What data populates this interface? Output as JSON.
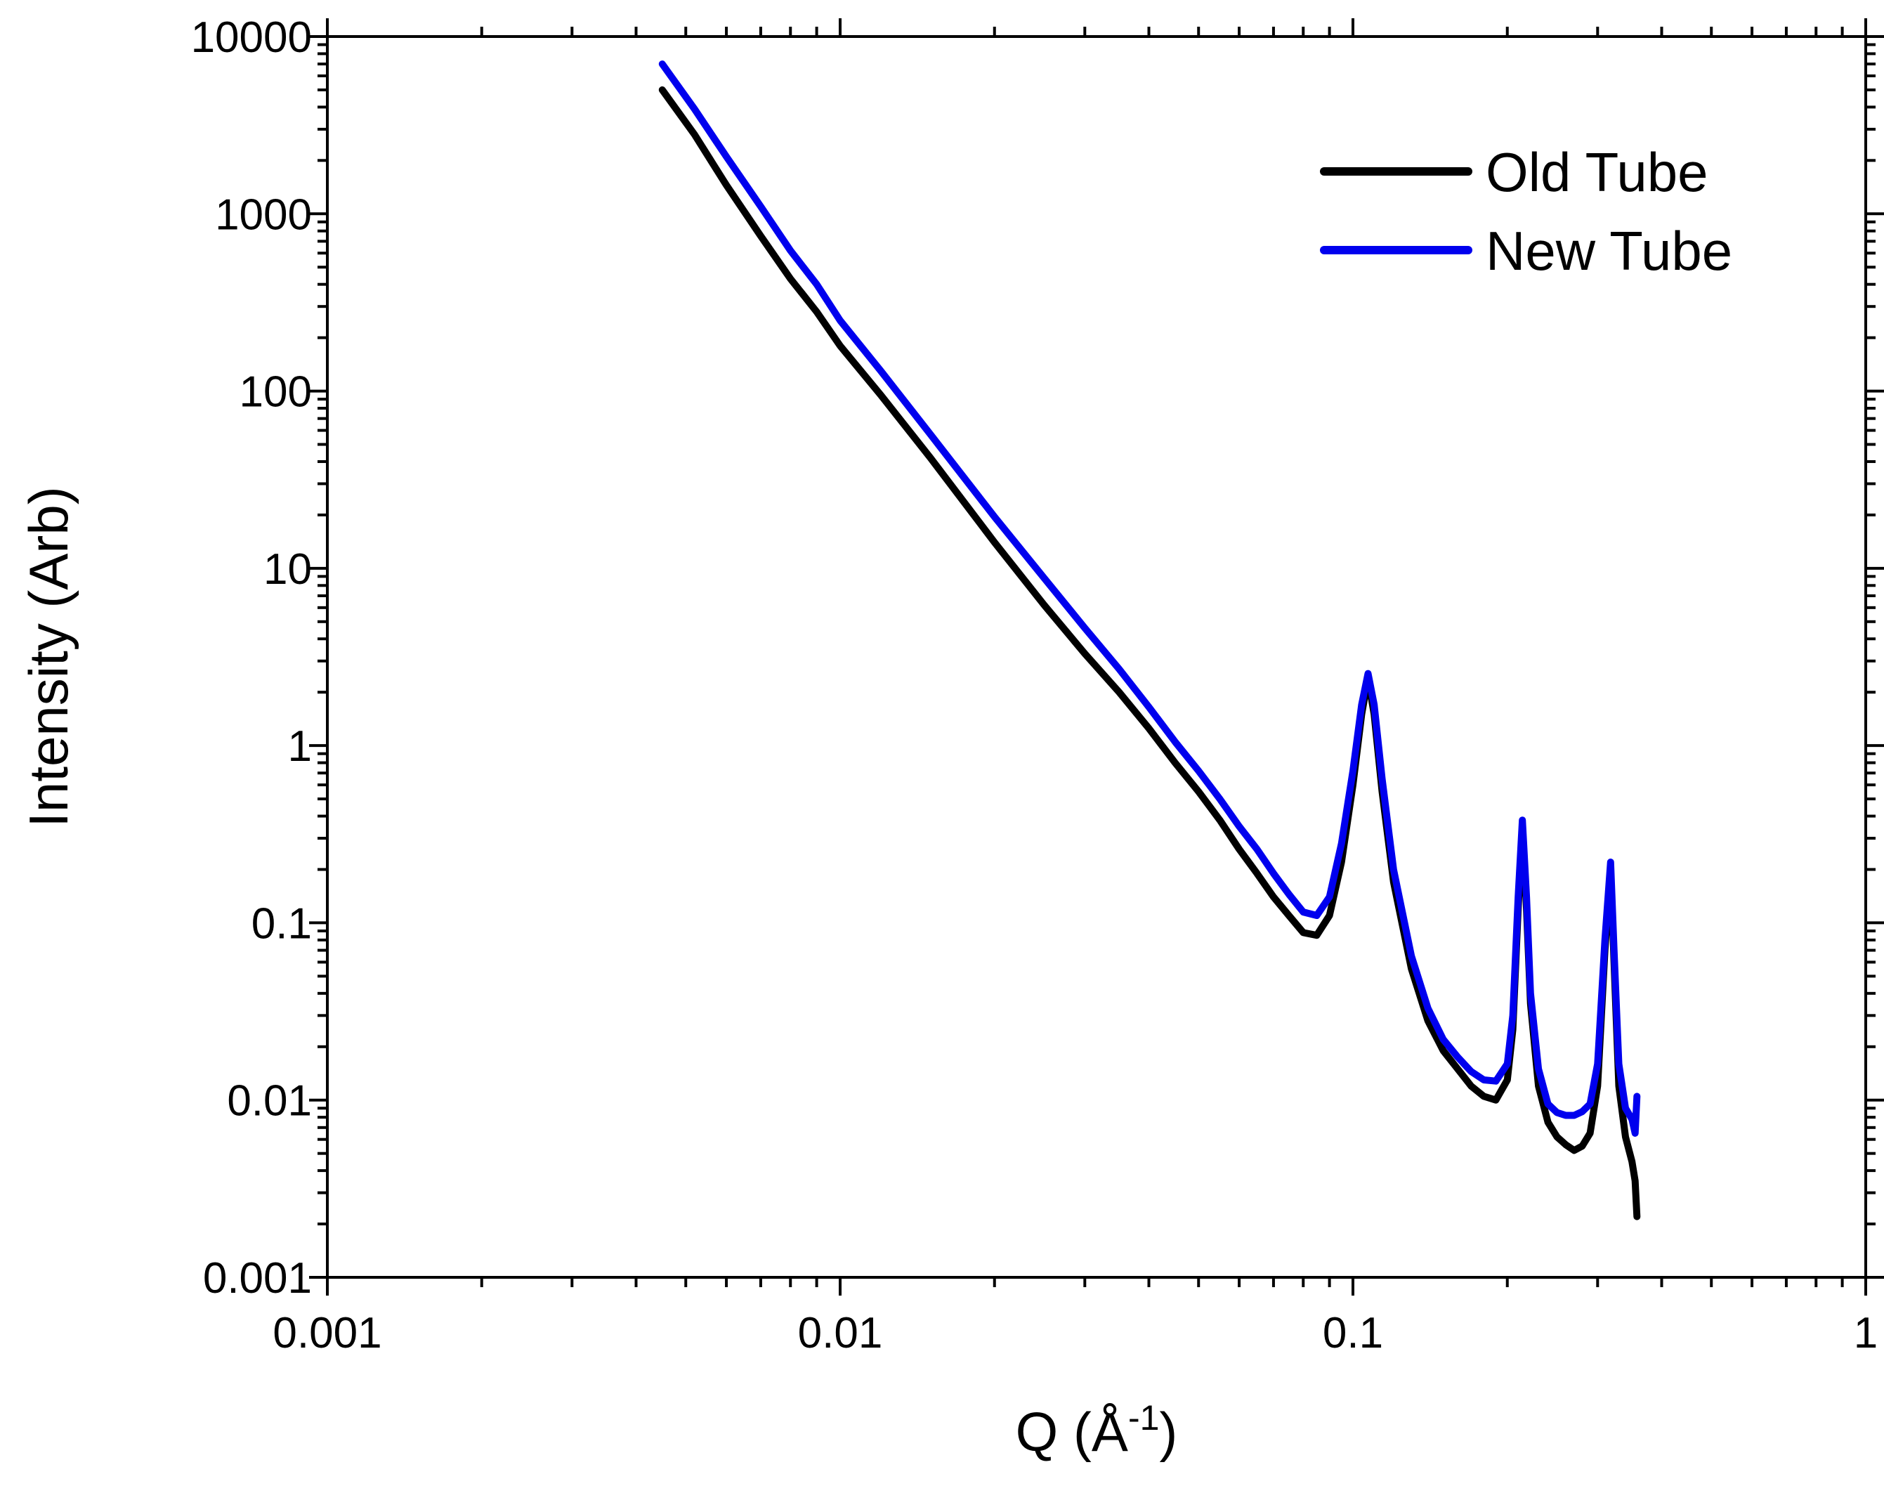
{
  "chart_data": {
    "type": "line",
    "xlabel": {
      "base": "Q (Å",
      "sup": "-1",
      "close": ")"
    },
    "ylabel": "Intensity (Arb)",
    "xscale": "log",
    "yscale": "log",
    "xlim": [
      0.001,
      1
    ],
    "ylim": [
      0.001,
      10000
    ],
    "grid": false,
    "legend_position": "top-right",
    "x_tick_labels": [
      "0.001",
      "0.01",
      "0.1",
      "1"
    ],
    "y_tick_labels": [
      "0.001",
      "0.01",
      "0.1",
      "1",
      "10",
      "100",
      "1000",
      "10000"
    ],
    "series": [
      {
        "name": "Old Tube",
        "color": "#000000",
        "points": [
          [
            0.0045,
            5000
          ],
          [
            0.0052,
            2800
          ],
          [
            0.006,
            1450
          ],
          [
            0.007,
            750
          ],
          [
            0.008,
            430
          ],
          [
            0.009,
            280
          ],
          [
            0.01,
            180
          ],
          [
            0.012,
            95
          ],
          [
            0.015,
            42
          ],
          [
            0.02,
            14
          ],
          [
            0.025,
            6.2
          ],
          [
            0.03,
            3.3
          ],
          [
            0.035,
            2.0
          ],
          [
            0.04,
            1.25
          ],
          [
            0.045,
            0.8
          ],
          [
            0.05,
            0.55
          ],
          [
            0.055,
            0.38
          ],
          [
            0.06,
            0.26
          ],
          [
            0.065,
            0.19
          ],
          [
            0.07,
            0.14
          ],
          [
            0.075,
            0.11
          ],
          [
            0.08,
            0.088
          ],
          [
            0.085,
            0.085
          ],
          [
            0.09,
            0.11
          ],
          [
            0.095,
            0.22
          ],
          [
            0.1,
            0.6
          ],
          [
            0.104,
            1.5
          ],
          [
            0.107,
            2.4
          ],
          [
            0.11,
            1.5
          ],
          [
            0.114,
            0.55
          ],
          [
            0.12,
            0.17
          ],
          [
            0.13,
            0.055
          ],
          [
            0.14,
            0.028
          ],
          [
            0.15,
            0.019
          ],
          [
            0.16,
            0.015
          ],
          [
            0.17,
            0.012
          ],
          [
            0.18,
            0.0105
          ],
          [
            0.19,
            0.01
          ],
          [
            0.2,
            0.013
          ],
          [
            0.205,
            0.025
          ],
          [
            0.21,
            0.12
          ],
          [
            0.214,
            0.35
          ],
          [
            0.218,
            0.12
          ],
          [
            0.222,
            0.035
          ],
          [
            0.23,
            0.012
          ],
          [
            0.24,
            0.0075
          ],
          [
            0.25,
            0.0062
          ],
          [
            0.26,
            0.0056
          ],
          [
            0.27,
            0.0052
          ],
          [
            0.28,
            0.0055
          ],
          [
            0.29,
            0.0065
          ],
          [
            0.3,
            0.012
          ],
          [
            0.31,
            0.07
          ],
          [
            0.318,
            0.2
          ],
          [
            0.323,
            0.06
          ],
          [
            0.33,
            0.012
          ],
          [
            0.34,
            0.0062
          ],
          [
            0.35,
            0.0045
          ],
          [
            0.355,
            0.0035
          ],
          [
            0.358,
            0.0022
          ]
        ]
      },
      {
        "name": "New Tube",
        "color": "#0000ee",
        "points": [
          [
            0.0045,
            7000
          ],
          [
            0.0052,
            3900
          ],
          [
            0.006,
            2100
          ],
          [
            0.007,
            1100
          ],
          [
            0.008,
            620
          ],
          [
            0.009,
            400
          ],
          [
            0.01,
            250
          ],
          [
            0.012,
            130
          ],
          [
            0.015,
            57
          ],
          [
            0.02,
            19.5
          ],
          [
            0.025,
            8.8
          ],
          [
            0.03,
            4.6
          ],
          [
            0.035,
            2.7
          ],
          [
            0.04,
            1.65
          ],
          [
            0.045,
            1.05
          ],
          [
            0.05,
            0.72
          ],
          [
            0.055,
            0.5
          ],
          [
            0.06,
            0.35
          ],
          [
            0.065,
            0.26
          ],
          [
            0.07,
            0.19
          ],
          [
            0.075,
            0.145
          ],
          [
            0.08,
            0.115
          ],
          [
            0.085,
            0.11
          ],
          [
            0.09,
            0.14
          ],
          [
            0.095,
            0.28
          ],
          [
            0.1,
            0.72
          ],
          [
            0.104,
            1.7
          ],
          [
            0.107,
            2.55
          ],
          [
            0.11,
            1.7
          ],
          [
            0.114,
            0.65
          ],
          [
            0.12,
            0.2
          ],
          [
            0.13,
            0.065
          ],
          [
            0.14,
            0.033
          ],
          [
            0.15,
            0.022
          ],
          [
            0.16,
            0.0175
          ],
          [
            0.17,
            0.0145
          ],
          [
            0.18,
            0.013
          ],
          [
            0.19,
            0.0128
          ],
          [
            0.2,
            0.016
          ],
          [
            0.205,
            0.03
          ],
          [
            0.21,
            0.14
          ],
          [
            0.214,
            0.38
          ],
          [
            0.218,
            0.14
          ],
          [
            0.222,
            0.04
          ],
          [
            0.23,
            0.015
          ],
          [
            0.24,
            0.0095
          ],
          [
            0.25,
            0.0085
          ],
          [
            0.26,
            0.0082
          ],
          [
            0.27,
            0.0082
          ],
          [
            0.28,
            0.0086
          ],
          [
            0.29,
            0.0095
          ],
          [
            0.3,
            0.016
          ],
          [
            0.31,
            0.08
          ],
          [
            0.318,
            0.22
          ],
          [
            0.323,
            0.07
          ],
          [
            0.33,
            0.016
          ],
          [
            0.34,
            0.009
          ],
          [
            0.35,
            0.0078
          ],
          [
            0.355,
            0.0065
          ],
          [
            0.358,
            0.0105
          ]
        ]
      }
    ]
  }
}
